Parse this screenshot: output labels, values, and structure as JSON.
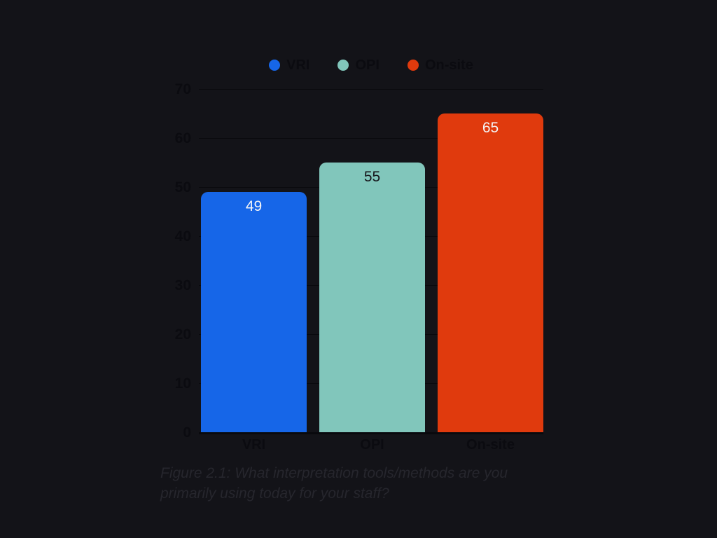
{
  "figure": {
    "caption": "Figure 2.1: What interpretation tools/methods are you primarily using today for your staff?"
  },
  "colors": {
    "background": "#131318",
    "axis_text": "#0b0b10",
    "gridline": "#09090d",
    "caption_text": "#26262d"
  },
  "chart_data": {
    "type": "bar",
    "title": "",
    "xlabel": "",
    "ylabel": "",
    "categories": [
      "VRI",
      "OPI",
      "On-site"
    ],
    "values": [
      49,
      55,
      65
    ],
    "bar_colors": [
      "#1666e8",
      "#81c6bb",
      "#e03a0d"
    ],
    "value_label_colors": [
      "#f4f4f6",
      "#15151a",
      "#f4f4f6"
    ],
    "ylim": [
      0,
      70
    ],
    "yticks": [
      0,
      10,
      20,
      30,
      40,
      50,
      60,
      70
    ],
    "grid": true,
    "legend_position": "top-center",
    "legend": [
      {
        "label": "VRI",
        "color": "#1666e8"
      },
      {
        "label": "OPI",
        "color": "#81c6bb"
      },
      {
        "label": "On-site",
        "color": "#e03a0d"
      }
    ]
  }
}
